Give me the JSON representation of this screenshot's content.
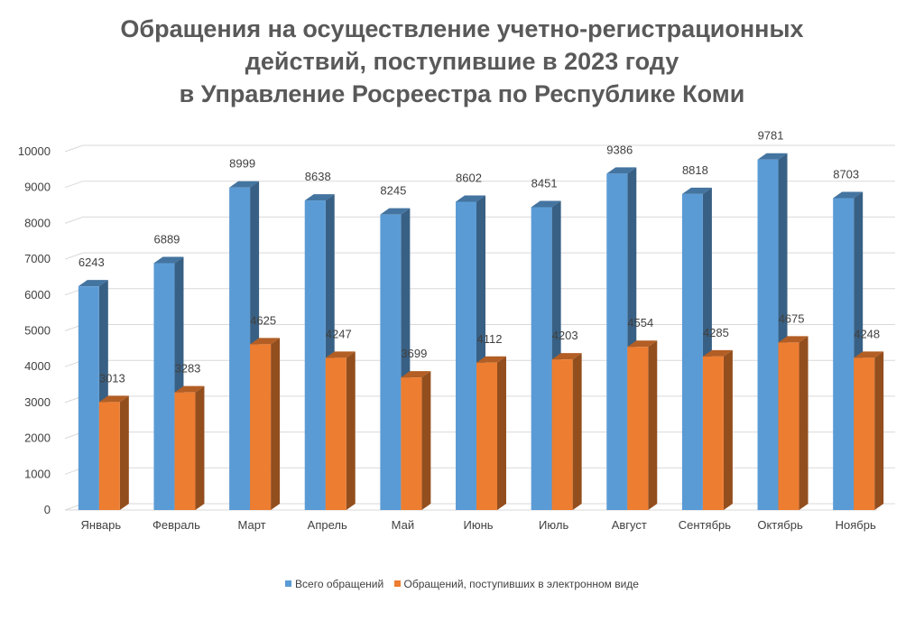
{
  "chart_data": {
    "type": "bar",
    "title_lines": [
      "Обращения на осуществление учетно-регистрационных",
      "действий, поступившие в 2023 году",
      "в Управление Росреестра по Республике Коми"
    ],
    "categories": [
      "Январь",
      "Февраль",
      "Март",
      "Апрель",
      "Май",
      "Июнь",
      "Июль",
      "Август",
      "Сентябрь",
      "Октябрь",
      "Ноябрь"
    ],
    "series": [
      {
        "name": "Всего обращений",
        "color": "#5B9BD5",
        "values": [
          6243,
          6889,
          8999,
          8638,
          8245,
          8602,
          8451,
          9386,
          8818,
          9781,
          8703
        ]
      },
      {
        "name": "Обращений, поступивших в электронном виде",
        "color": "#ED7D31",
        "values": [
          3013,
          3283,
          4625,
          4247,
          3699,
          4112,
          4203,
          4554,
          4285,
          4675,
          4248
        ]
      }
    ],
    "yticks": [
      0,
      1000,
      2000,
      3000,
      4000,
      5000,
      6000,
      7000,
      8000,
      9000,
      10000
    ],
    "ylim": [
      0,
      10000
    ],
    "grid": true,
    "legend_position": "bottom"
  }
}
